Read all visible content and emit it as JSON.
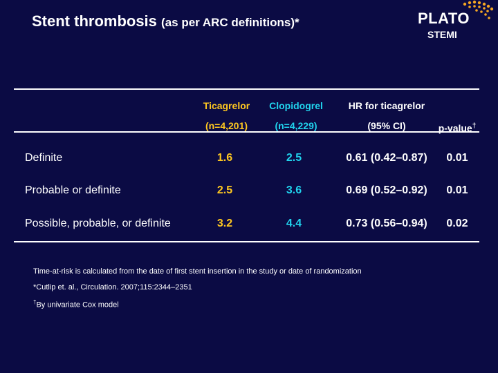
{
  "header": {
    "title": "Stent thrombosis",
    "subtitle": "(as per ARC definitions)*",
    "logo_text": "PLATO",
    "logo_sub": "STEMI"
  },
  "table": {
    "columns": [
      {
        "line1": "Ticagrelor",
        "line2": "(n=4,201)"
      },
      {
        "line1": "Clopidogrel",
        "line2": "(n=4,229)"
      },
      {
        "line1": "HR for ticagrelor",
        "line2": "(95% CI)"
      },
      {
        "line1": "",
        "line2": "p-value",
        "sup": "†"
      }
    ],
    "rows": [
      {
        "label": "Definite",
        "ticagrelor": "1.6",
        "clopidogrel": "2.5",
        "hr": "0.61 (0.42–0.87)",
        "p": "0.01"
      },
      {
        "label": "Probable or definite",
        "ticagrelor": "2.5",
        "clopidogrel": "3.6",
        "hr": "0.69 (0.52–0.92)",
        "p": "0.01"
      },
      {
        "label": "Possible, probable, or definite",
        "ticagrelor": "3.2",
        "clopidogrel": "4.4",
        "hr": "0.73 (0.56–0.94)",
        "p": "0.02"
      }
    ]
  },
  "footnotes": {
    "line1": "Time-at-risk is calculated from the date of first stent insertion in the study or date of randomization",
    "line2": "*Cutlip et. al., Circulation. 2007;115:2344–2351",
    "line3_sup": "†",
    "line3": "By univariate Cox model"
  },
  "colors": {
    "background": "#0b0b44",
    "ticagrelor": "#ffc820",
    "clopidogrel": "#20d4ee",
    "logo_dots": "#f5a623"
  }
}
